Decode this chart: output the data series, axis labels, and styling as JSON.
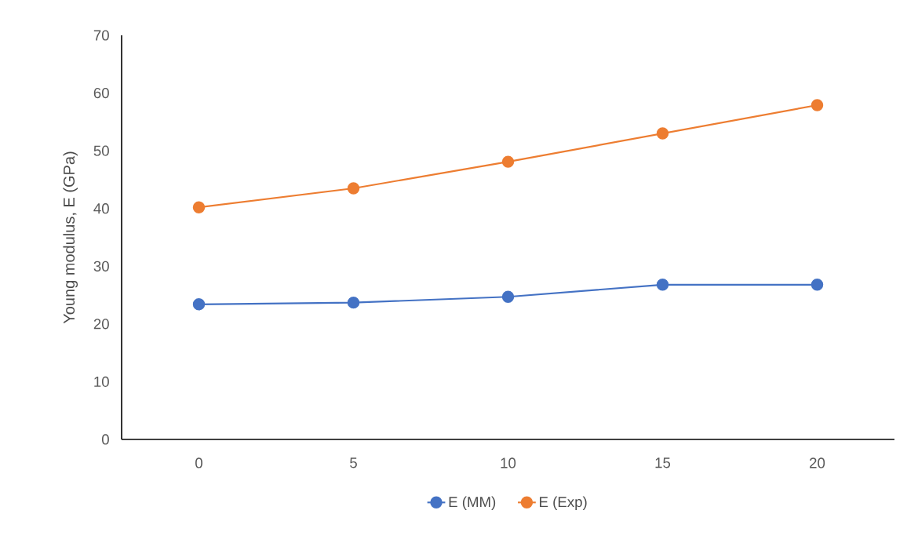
{
  "chart_data": {
    "type": "line",
    "ylabel": "Young modulus, E (GPa)",
    "categories": [
      "0",
      "5",
      "10",
      "15",
      "20"
    ],
    "series": [
      {
        "name": "E (MM)",
        "color": "#4472c4",
        "values": [
          23.4,
          23.7,
          24.7,
          26.8,
          26.8
        ]
      },
      {
        "name": "E (Exp)",
        "color": "#ed7d31",
        "values": [
          40.2,
          43.5,
          48.1,
          53.0,
          57.9
        ]
      }
    ],
    "ylim": [
      0,
      70
    ],
    "yticks": [
      0,
      10,
      20,
      30,
      40,
      50,
      60,
      70
    ],
    "legend": "bottom",
    "marker": "circle",
    "line_style": "solid"
  }
}
